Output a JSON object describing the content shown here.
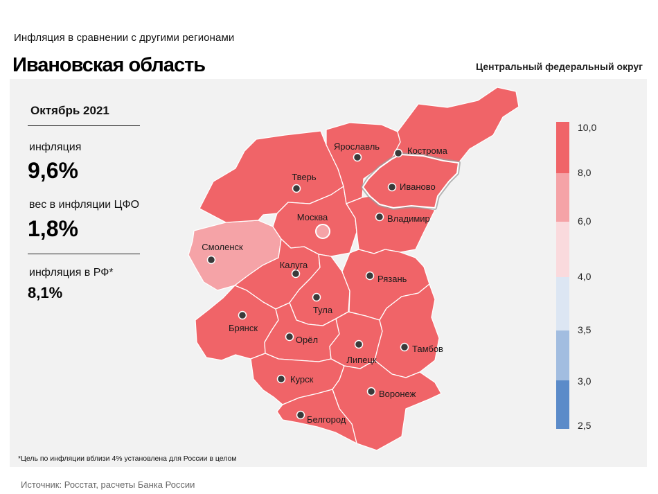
{
  "header": {
    "subtitle": "Инфляция  в сравнении  с другими  регионами",
    "title": "Ивановская область",
    "district": "Центральный федеральный округ"
  },
  "panel": {
    "period": "Октябрь 2021",
    "inflation_label": "инфляция",
    "inflation_value": "9,6%",
    "weight_label": "вес в инфляции  ЦФО",
    "weight_value": "1,8%",
    "rf_label": "инфляция  в РФ*",
    "rf_value": "8,1%"
  },
  "footnote": "*Цель по инфляции вблизи 4% установлена для России в целом",
  "source": "Источник: Росстат, расчеты Банка России",
  "colors": {
    "high": "#f06468",
    "medium": "#f5a3a7",
    "light": "#fadadd",
    "pale_blue": "#dce6f3",
    "blue_light": "#a2bde0",
    "blue_dark": "#5b8bc9",
    "border": "#ffffff",
    "panel_bg": "#f2f2f2"
  },
  "legend": {
    "ticks": [
      "10,0",
      "8,0",
      "6,0",
      "4,0",
      "3,5",
      "3,0",
      "2,5"
    ]
  },
  "map": {
    "highlighted_region": "Иваново",
    "regions": [
      {
        "name": "Смоленск",
        "category": "medium"
      },
      {
        "name": "Тверь",
        "category": "high"
      },
      {
        "name": "Москва",
        "category": "high"
      },
      {
        "name": "Ярославль",
        "category": "high"
      },
      {
        "name": "Кострома",
        "category": "high"
      },
      {
        "name": "Иваново",
        "category": "high"
      },
      {
        "name": "Владимир",
        "category": "high"
      },
      {
        "name": "Калуга",
        "category": "high"
      },
      {
        "name": "Тула",
        "category": "high"
      },
      {
        "name": "Рязань",
        "category": "high"
      },
      {
        "name": "Брянск",
        "category": "high"
      },
      {
        "name": "Орёл",
        "category": "high"
      },
      {
        "name": "Липецк",
        "category": "high"
      },
      {
        "name": "Тамбов",
        "category": "high"
      },
      {
        "name": "Курск",
        "category": "high"
      },
      {
        "name": "Воронеж",
        "category": "high"
      },
      {
        "name": "Белгород",
        "category": "high"
      }
    ]
  }
}
